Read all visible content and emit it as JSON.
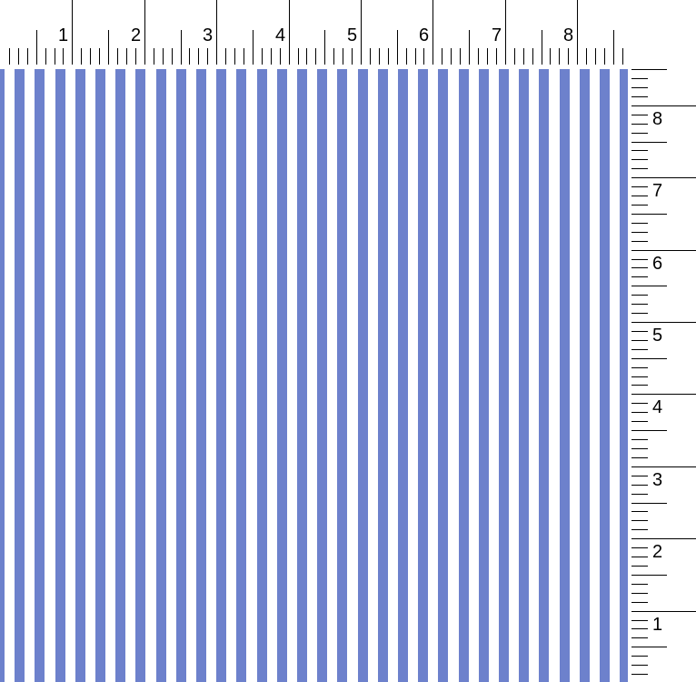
{
  "top_ruler": {
    "labels": [
      "1",
      "2",
      "3",
      "4",
      "5",
      "6",
      "7",
      "8"
    ]
  },
  "right_ruler": {
    "labels": [
      "1",
      "2",
      "3",
      "4",
      "5",
      "6",
      "7",
      "8"
    ]
  },
  "fabric": {
    "pattern": "vertical stripes",
    "stripe_color": "#5b72c6",
    "ground_color": "#ffffff"
  }
}
